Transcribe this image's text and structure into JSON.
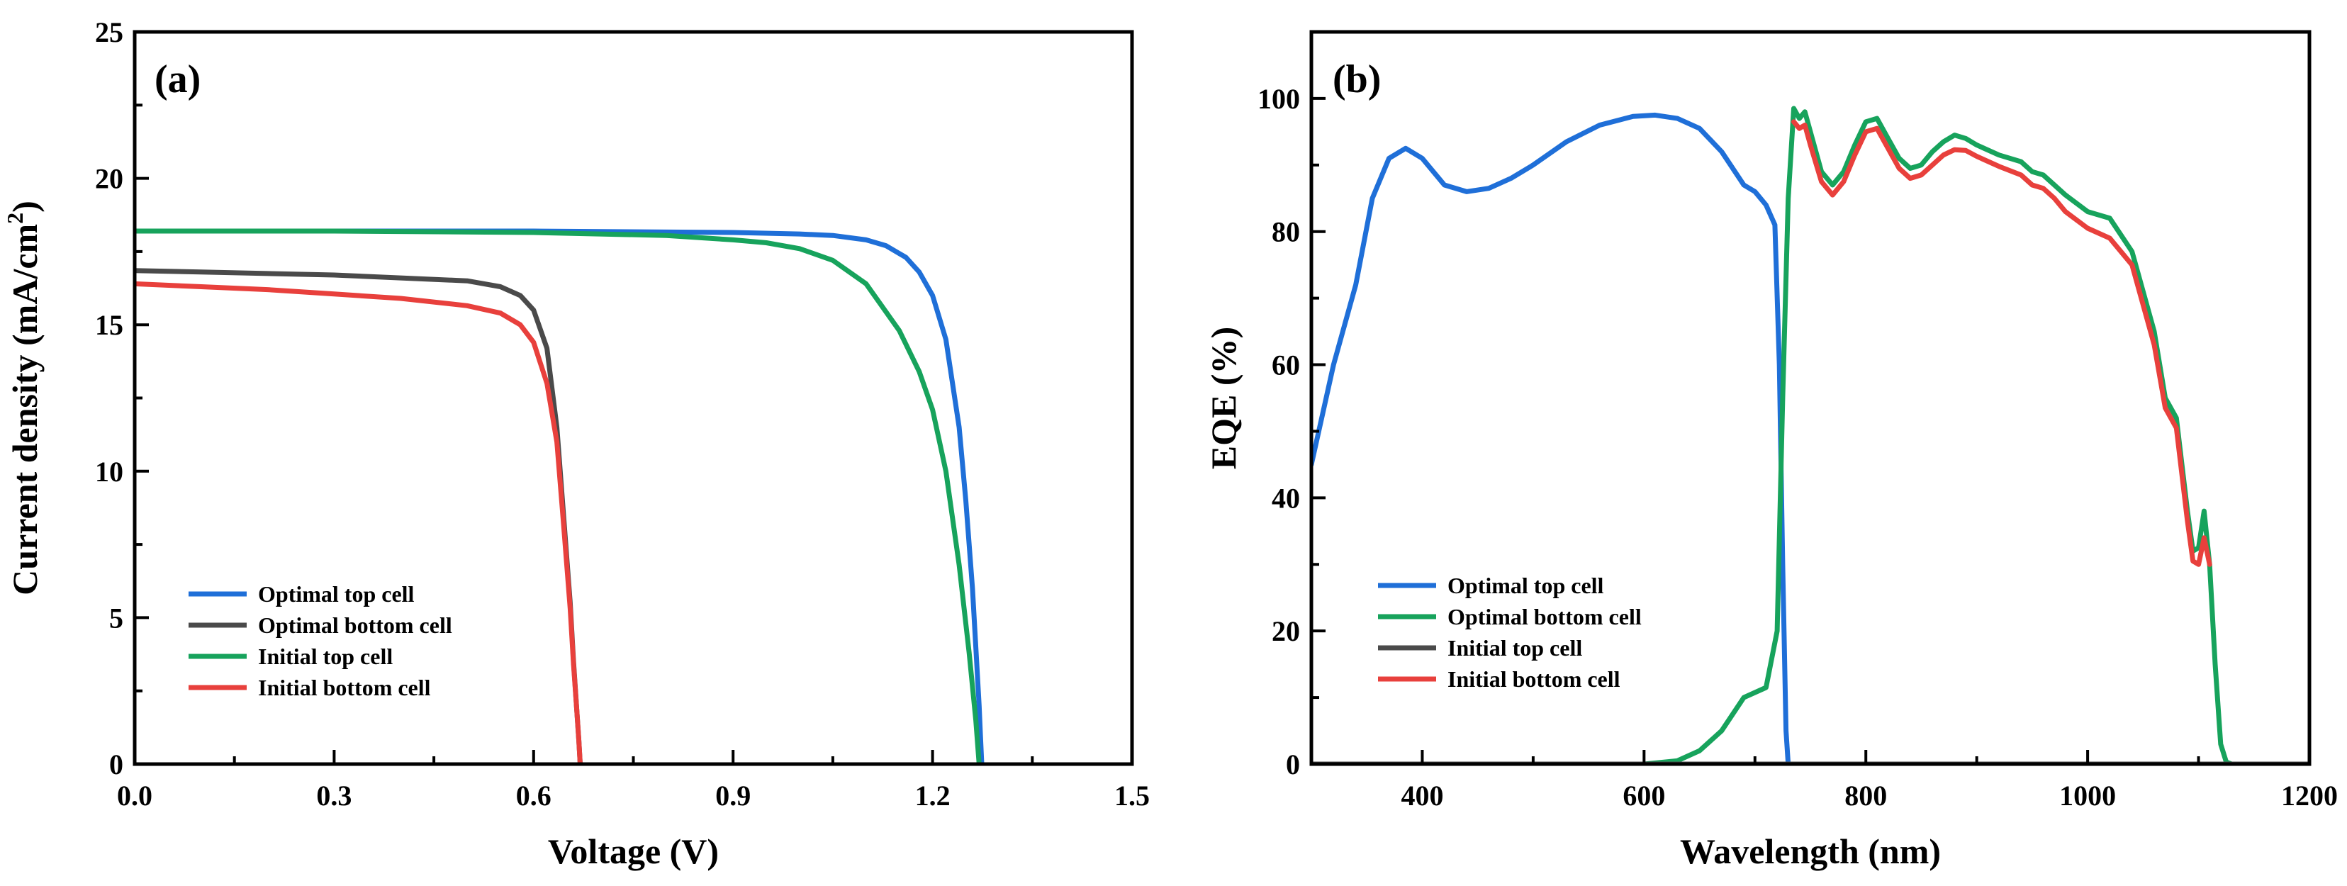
{
  "chart_data": [
    {
      "type": "line",
      "panel_label": "(a)",
      "title": "",
      "xlabel": "Voltage (V)",
      "ylabel": "Current density (mA/cm",
      "ylabel_sup": "2",
      "ylabel_end": ")",
      "xlim": [
        0,
        1.5
      ],
      "ylim": [
        0,
        25
      ],
      "xticks": [
        0.0,
        0.3,
        0.6,
        0.9,
        1.2,
        1.5
      ],
      "xtick_labels": [
        "0.0",
        "0.3",
        "0.6",
        "0.9",
        "1.2",
        "1.5"
      ],
      "yticks": [
        0,
        5,
        10,
        15,
        20,
        25
      ],
      "ytick_labels": [
        "0",
        "5",
        "10",
        "15",
        "20",
        "25"
      ],
      "legend_position": "lower-left",
      "series": [
        {
          "name": "Optimal top cell",
          "color": "#1f6fd8",
          "x": [
            0,
            0.3,
            0.6,
            0.9,
            1.0,
            1.05,
            1.1,
            1.13,
            1.16,
            1.18,
            1.2,
            1.22,
            1.24,
            1.25,
            1.26,
            1.265,
            1.27,
            1.272,
            1.274
          ],
          "y": [
            18.2,
            18.2,
            18.2,
            18.15,
            18.1,
            18.05,
            17.9,
            17.7,
            17.3,
            16.8,
            16.0,
            14.5,
            11.5,
            9.0,
            6.0,
            4.0,
            2.0,
            1.0,
            0
          ]
        },
        {
          "name": "Optimal bottom cell",
          "color": "#4a4a4a",
          "x": [
            0,
            0.1,
            0.2,
            0.3,
            0.4,
            0.5,
            0.55,
            0.58,
            0.6,
            0.62,
            0.635,
            0.645,
            0.655,
            0.66,
            0.665,
            0.668,
            0.67
          ],
          "y": [
            16.85,
            16.8,
            16.75,
            16.7,
            16.6,
            16.5,
            16.3,
            16.0,
            15.5,
            14.2,
            11.5,
            8.5,
            5.5,
            3.5,
            1.8,
            0.8,
            0
          ]
        },
        {
          "name": "Initial top cell",
          "color": "#17a35c",
          "x": [
            0,
            0.3,
            0.6,
            0.8,
            0.9,
            0.95,
            1.0,
            1.05,
            1.1,
            1.15,
            1.18,
            1.2,
            1.22,
            1.24,
            1.255,
            1.265,
            1.27
          ],
          "y": [
            18.2,
            18.2,
            18.15,
            18.05,
            17.9,
            17.8,
            17.6,
            17.2,
            16.4,
            14.8,
            13.4,
            12.1,
            10.0,
            6.8,
            3.8,
            1.5,
            0
          ]
        },
        {
          "name": "Initial bottom cell",
          "color": "#e8403c",
          "x": [
            0,
            0.1,
            0.2,
            0.3,
            0.4,
            0.5,
            0.55,
            0.58,
            0.6,
            0.62,
            0.635,
            0.645,
            0.655,
            0.66,
            0.665,
            0.668,
            0.67
          ],
          "y": [
            16.4,
            16.3,
            16.2,
            16.05,
            15.9,
            15.65,
            15.4,
            15.0,
            14.4,
            13.0,
            11.0,
            8.2,
            5.3,
            3.4,
            1.8,
            0.8,
            0
          ]
        }
      ]
    },
    {
      "type": "line",
      "panel_label": "(b)",
      "title": "",
      "xlabel": "Wavelength (nm)",
      "ylabel": "EQE (%)",
      "xlim": [
        300,
        1200
      ],
      "ylim": [
        0,
        110
      ],
      "xticks": [
        400,
        600,
        800,
        1000,
        1200
      ],
      "xtick_labels": [
        "400",
        "600",
        "800",
        "1000",
        "1200"
      ],
      "yticks": [
        0,
        20,
        40,
        60,
        80,
        100
      ],
      "ytick_labels": [
        "0",
        "20",
        "40",
        "60",
        "80",
        "100"
      ],
      "legend_position": "lower-left",
      "series": [
        {
          "name": "Optimal top cell",
          "color": "#1f6fd8",
          "x": [
            300,
            320,
            340,
            355,
            370,
            385,
            400,
            420,
            440,
            460,
            480,
            500,
            530,
            560,
            590,
            610,
            630,
            650,
            670,
            690,
            700,
            710,
            718,
            722,
            725,
            728,
            730,
            735,
            800,
            900,
            1000,
            1100,
            1200
          ],
          "y": [
            45,
            60,
            72,
            85,
            91,
            92.5,
            91,
            87,
            86,
            86.5,
            88,
            90,
            93.5,
            96,
            97.3,
            97.5,
            97,
            95.5,
            92,
            87,
            86,
            84,
            81,
            60,
            30,
            5,
            0,
            0,
            0,
            0,
            0,
            0,
            0
          ]
        },
        {
          "name": "Optimal bottom cell",
          "color": "#17a35c",
          "x": [
            300,
            400,
            500,
            600,
            630,
            650,
            670,
            690,
            710,
            720,
            725,
            730,
            735,
            740,
            745,
            750,
            760,
            770,
            780,
            790,
            800,
            810,
            820,
            830,
            840,
            850,
            860,
            870,
            880,
            890,
            900,
            920,
            940,
            950,
            960,
            970,
            980,
            1000,
            1020,
            1040,
            1060,
            1070,
            1080,
            1085,
            1090,
            1095,
            1100,
            1105,
            1110,
            1115,
            1120,
            1125,
            1130,
            1200
          ],
          "y": [
            0,
            0,
            0,
            0,
            0.5,
            2,
            5,
            10,
            11.5,
            20,
            55,
            85,
            98.5,
            97,
            98,
            95,
            89,
            87,
            89,
            93,
            96.5,
            97,
            94,
            91,
            89.5,
            90,
            92,
            93.5,
            94.5,
            94,
            93,
            91.5,
            90.5,
            89,
            88.5,
            87,
            85.5,
            83,
            82,
            77,
            65,
            55,
            52,
            45,
            38,
            32,
            32.5,
            38,
            30,
            15,
            3,
            0.3,
            0,
            0
          ]
        },
        {
          "name": "Initial top cell",
          "color": "#4a4a4a",
          "x": [
            300,
            720,
            725,
            728,
            730,
            735,
            800,
            1000,
            1200
          ],
          "y": [
            0,
            0,
            0,
            0,
            0,
            0,
            0,
            0,
            0
          ]
        },
        {
          "name": "Initial bottom cell",
          "color": "#e8403c",
          "x": [
            735,
            740,
            745,
            750,
            760,
            770,
            780,
            790,
            800,
            810,
            820,
            830,
            840,
            850,
            860,
            870,
            880,
            890,
            900,
            920,
            940,
            950,
            960,
            970,
            980,
            1000,
            1020,
            1040,
            1060,
            1070,
            1080,
            1085,
            1090,
            1095,
            1100,
            1105,
            1110
          ],
          "y": [
            96.5,
            95.5,
            96,
            93,
            87.5,
            85.5,
            87.5,
            91.5,
            95,
            95.5,
            92.5,
            89.5,
            88,
            88.5,
            90,
            91.5,
            92.3,
            92.2,
            91.3,
            89.8,
            88.5,
            87,
            86.5,
            85,
            83,
            80.5,
            79,
            75,
            63,
            53.5,
            50.5,
            43.5,
            36.5,
            30.5,
            30,
            34,
            30
          ]
        }
      ]
    }
  ]
}
